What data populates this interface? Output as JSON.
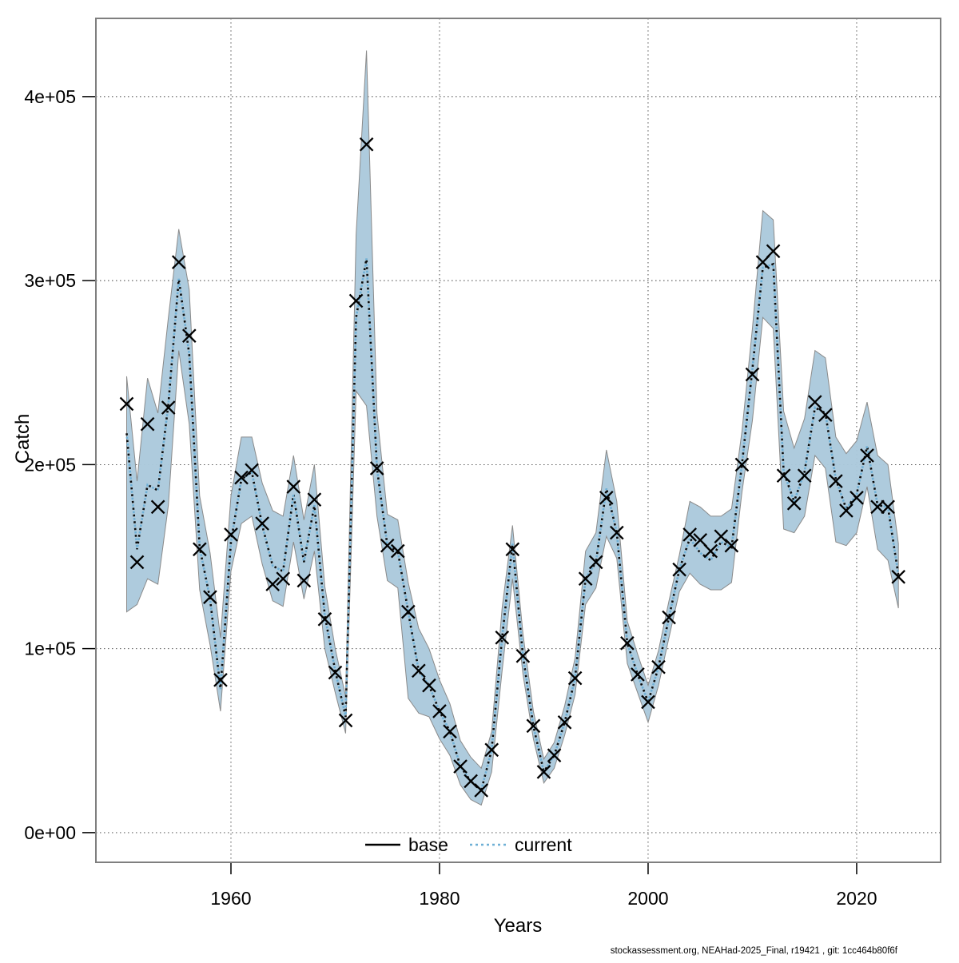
{
  "page": {
    "background": "#ffffff"
  },
  "chart_data": {
    "type": "line",
    "title": "",
    "xlabel": "Years",
    "ylabel": "Catch",
    "footer": "stockassessment.org, NEAHad-2025_Final, r19421 , git: 1cc464b80f6f",
    "legend": [
      "base",
      "current"
    ],
    "legend_position": "bottom-center-inside",
    "grid": true,
    "x_axis": {
      "ticks": [
        1960,
        1980,
        2000,
        2020
      ],
      "labels": [
        "1960",
        "1980",
        "2000",
        "2020"
      ],
      "range": [
        1947.05,
        2028.05
      ]
    },
    "y_axis": {
      "tick_values_thousands": [
        0,
        100,
        200,
        300,
        400
      ],
      "labels": [
        "0e+00",
        "1e+05",
        "2e+05",
        "3e+05",
        "4e+05"
      ],
      "range_thousands": [
        -16.1,
        442.5
      ]
    },
    "units": "catch values stored in thousands of tonnes",
    "years": [
      1950,
      1951,
      1952,
      1953,
      1954,
      1955,
      1956,
      1957,
      1958,
      1959,
      1960,
      1961,
      1962,
      1963,
      1964,
      1965,
      1966,
      1967,
      1968,
      1969,
      1970,
      1971,
      1972,
      1973,
      1974,
      1975,
      1976,
      1977,
      1978,
      1979,
      1980,
      1981,
      1982,
      1983,
      1984,
      1985,
      1986,
      1987,
      1988,
      1989,
      1990,
      1991,
      1992,
      1993,
      1994,
      1995,
      1996,
      1997,
      1998,
      1999,
      2000,
      2001,
      2002,
      2003,
      2004,
      2005,
      2006,
      2007,
      2008,
      2009,
      2010,
      2011,
      2012,
      2013,
      2014,
      2015,
      2016,
      2017,
      2018,
      2019,
      2020,
      2021,
      2022,
      2023,
      2024
    ],
    "series": [
      {
        "name": "base",
        "render": "x-markers",
        "color": "#000000",
        "values_thousands": [
          233,
          147,
          222,
          177,
          231,
          310,
          270,
          154,
          128,
          83,
          162,
          193,
          197,
          168,
          135,
          138,
          188,
          137,
          181,
          116,
          87,
          61,
          289,
          374,
          198,
          156,
          153,
          120,
          88,
          80,
          66,
          55,
          36,
          28,
          23,
          45,
          106,
          154,
          96,
          58,
          33,
          42,
          60,
          84,
          138,
          147,
          182,
          163,
          103,
          86,
          71,
          90,
          117,
          143,
          162,
          159,
          153,
          161,
          156,
          200,
          249,
          310,
          316,
          194,
          179,
          194,
          234,
          227,
          191,
          175,
          182,
          205,
          177,
          177,
          139
        ]
      },
      {
        "name": "current",
        "render": "dotted-line",
        "color": "#6fb0d6",
        "values_thousands": [
          217,
          154,
          189,
          186,
          233,
          301,
          260,
          155,
          127,
          78,
          158,
          192,
          196,
          167,
          145,
          142,
          184,
          147,
          178,
          118,
          88,
          63,
          280,
          312,
          198,
          156,
          153,
          120,
          88,
          80,
          66,
          55,
          36,
          28,
          23,
          45,
          106,
          157,
          96,
          58,
          33,
          42,
          60,
          84,
          138,
          147,
          187,
          163,
          103,
          86,
          71,
          90,
          117,
          143,
          160,
          152,
          148,
          158,
          155,
          200,
          252,
          307,
          309,
          196,
          180,
          196,
          231,
          228,
          192,
          176,
          184,
          210,
          178,
          177,
          140
        ]
      }
    ],
    "ribbon": {
      "name": "current-confidence-band",
      "fill": "#abc9dc",
      "edge": "#8a8a8a",
      "lo_thousands": [
        120,
        124,
        138,
        135,
        178,
        262,
        222,
        132,
        102,
        66,
        142,
        168,
        172,
        146,
        126,
        123,
        158,
        127,
        153,
        100,
        76,
        54,
        240,
        232,
        172,
        137,
        133,
        73,
        65,
        63,
        51,
        42,
        26,
        18,
        15,
        33,
        88,
        138,
        86,
        51,
        27,
        35,
        53,
        75,
        124,
        133,
        161,
        149,
        92,
        76,
        60,
        80,
        106,
        131,
        141,
        135,
        132,
        132,
        136,
        185,
        224,
        280,
        274,
        165,
        163,
        172,
        205,
        198,
        158,
        156,
        163,
        188,
        154,
        148,
        122
      ],
      "hi_thousands": [
        248,
        191,
        247,
        228,
        280,
        328,
        295,
        183,
        152,
        106,
        183,
        215,
        215,
        190,
        175,
        172,
        205,
        170,
        200,
        134,
        100,
        74,
        325,
        425,
        228,
        173,
        170,
        136,
        111,
        100,
        83,
        70,
        50,
        41,
        35,
        55,
        122,
        167,
        108,
        66,
        40,
        49,
        69,
        95,
        153,
        163,
        208,
        180,
        115,
        97,
        80,
        99,
        126,
        151,
        180,
        177,
        172,
        172,
        176,
        218,
        274,
        338,
        333,
        229,
        209,
        225,
        262,
        258,
        215,
        206,
        213,
        234,
        205,
        200,
        157
      ]
    },
    "colors": {
      "ribbon": "#abc9dc",
      "ribbon_edge": "#8a8a8a",
      "current_blue": "#6fb0d6",
      "marker_black": "#000000",
      "grid": "#3c3c3c",
      "border": "#7f7f7f"
    }
  }
}
